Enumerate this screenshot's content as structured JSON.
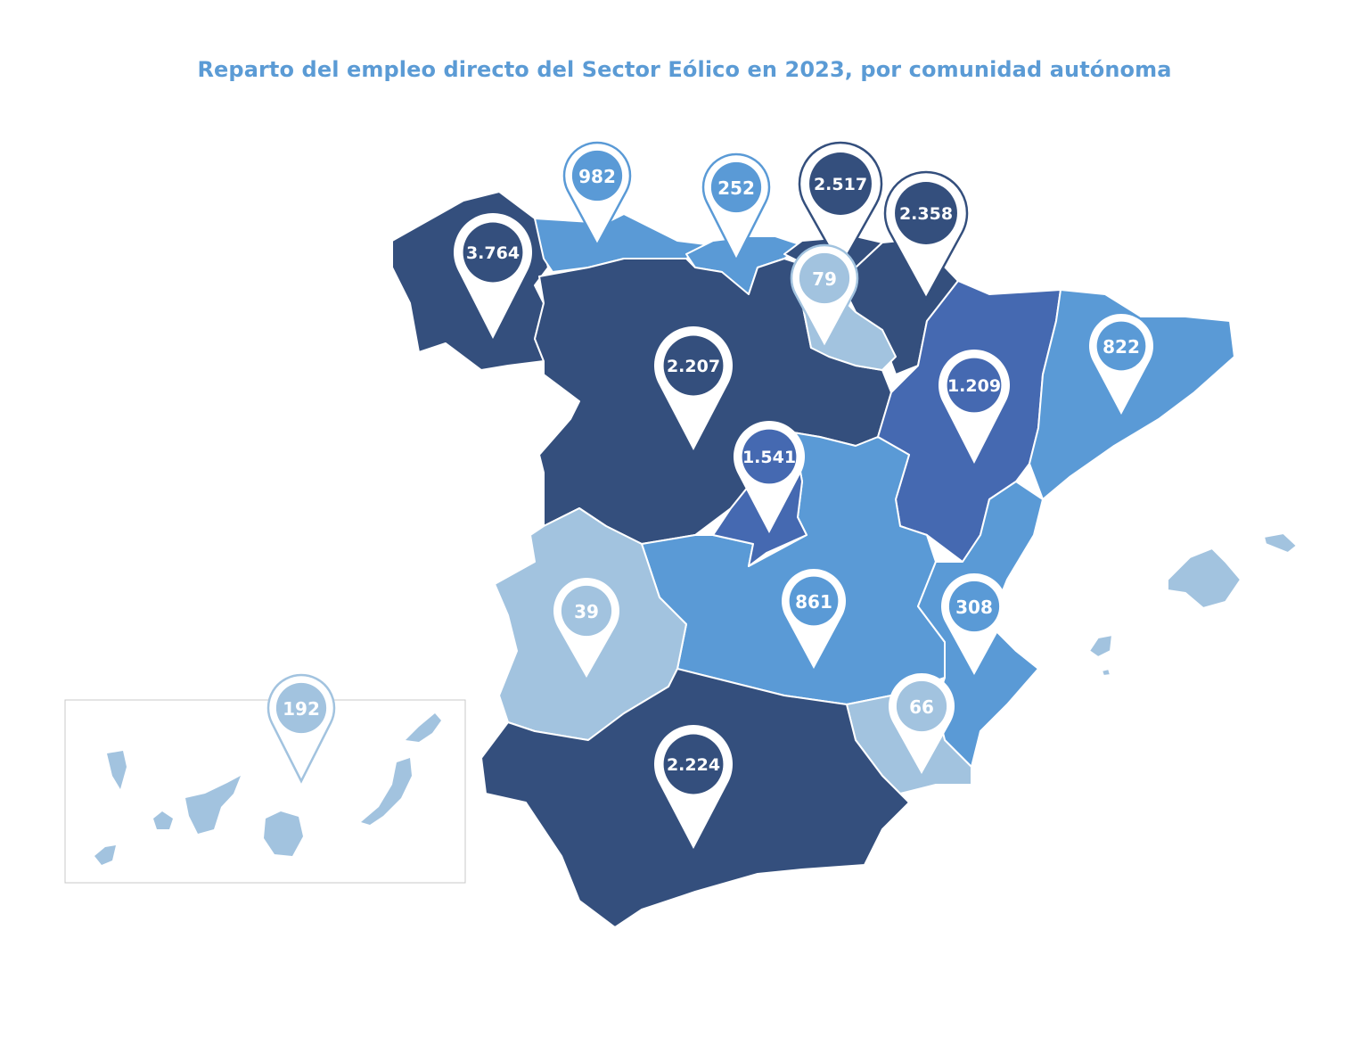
{
  "title": "Reparto del empleo directo del Sector Eólico en 2023, por comunidad autónoma",
  "palette": {
    "navy": "#344f7d",
    "medium": "#4569b1",
    "light": "#5a9ad6",
    "pale": "#a2c3df",
    "border": "#ffffff",
    "inset_border": "#c8c8c8"
  },
  "pins": [
    {
      "value": "3.764",
      "color": "navy",
      "outline": "none"
    },
    {
      "value": "982",
      "color": "light",
      "outline": "light"
    },
    {
      "value": "252",
      "color": "light",
      "outline": "light"
    },
    {
      "value": "2.517",
      "color": "navy",
      "outline": "navy"
    },
    {
      "value": "2.358",
      "color": "navy",
      "outline": "navy"
    },
    {
      "value": "79",
      "color": "pale",
      "outline": "pale"
    },
    {
      "value": "2.207",
      "color": "navy",
      "outline": "none"
    },
    {
      "value": "1.209",
      "color": "medium",
      "outline": "none"
    },
    {
      "value": "822",
      "color": "light",
      "outline": "none"
    },
    {
      "value": "1.541",
      "color": "medium",
      "outline": "none"
    },
    {
      "value": "861",
      "color": "light",
      "outline": "none"
    },
    {
      "value": "308",
      "color": "light",
      "outline": "none"
    },
    {
      "value": "39",
      "color": "pale",
      "outline": "none"
    },
    {
      "value": "66",
      "color": "pale",
      "outline": "none"
    },
    {
      "value": "2.224",
      "color": "navy",
      "outline": "none"
    },
    {
      "value": "192",
      "color": "pale",
      "outline": "pale"
    }
  ]
}
